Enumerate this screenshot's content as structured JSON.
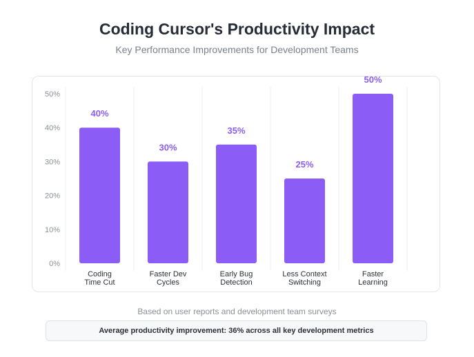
{
  "header": {
    "title": "Coding Cursor's Productivity Impact",
    "subtitle": "Key Performance Improvements for Development Teams"
  },
  "chart_data": {
    "type": "bar",
    "categories": [
      [
        "Coding",
        "Time Cut"
      ],
      [
        "Faster Dev",
        "Cycles"
      ],
      [
        "Early Bug",
        "Detection"
      ],
      [
        "Less Context",
        "Switching"
      ],
      [
        "Faster",
        "Learning"
      ]
    ],
    "values": [
      40,
      30,
      35,
      25,
      50
    ],
    "data_labels": [
      "40%",
      "30%",
      "35%",
      "25%",
      "50%"
    ],
    "y_ticks": [
      "0%",
      "10%",
      "20%",
      "30%",
      "40%",
      "50%"
    ],
    "ylim": [
      0,
      50
    ],
    "bar_color": "#8b5cf6",
    "label_color": "#8b5cf6",
    "grid": "vertical"
  },
  "footer": {
    "note": "Based on user reports and development team surveys",
    "summary": "Average productivity improvement: 36% across all key development metrics"
  }
}
